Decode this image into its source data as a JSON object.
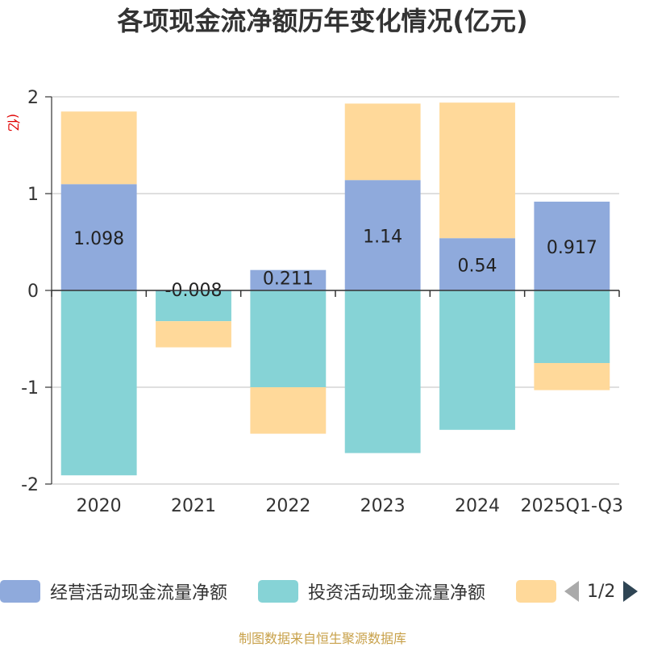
{
  "chart_data": {
    "type": "bar",
    "stacked": true,
    "title": "各项现金流净额历年变化情况(亿元)",
    "unit": "(亿元)",
    "categories": [
      "2020",
      "2021",
      "2022",
      "2023",
      "2024",
      "2025Q1-Q3"
    ],
    "ylim": [
      -2,
      2
    ],
    "yticks": [
      -2,
      -1,
      0,
      1,
      2
    ],
    "ytick_labels": [
      "-2",
      "-1",
      "0",
      "1",
      "2"
    ],
    "grid": true,
    "series": [
      {
        "name": "经营活动现金流量净额",
        "color": "#8faadc",
        "values": [
          1.098,
          -0.008,
          0.211,
          1.14,
          0.54,
          0.917
        ],
        "labels": [
          "1.098",
          "-0.008",
          "0.211",
          "1.14",
          "0.54",
          "0.917"
        ]
      },
      {
        "name": "投资活动现金流量净额",
        "color": "#86d3d6",
        "values": [
          -1.91,
          -0.31,
          -1.0,
          -1.68,
          -1.44,
          -0.75
        ]
      },
      {
        "name": "",
        "color": "#ffd99a",
        "values": [
          0.75,
          -0.27,
          -0.48,
          0.79,
          1.4,
          -0.28
        ]
      }
    ],
    "legend_position": "bottom"
  },
  "legend": {
    "pager_text": "1/2"
  },
  "source": "制图数据来自恒生聚源数据库"
}
